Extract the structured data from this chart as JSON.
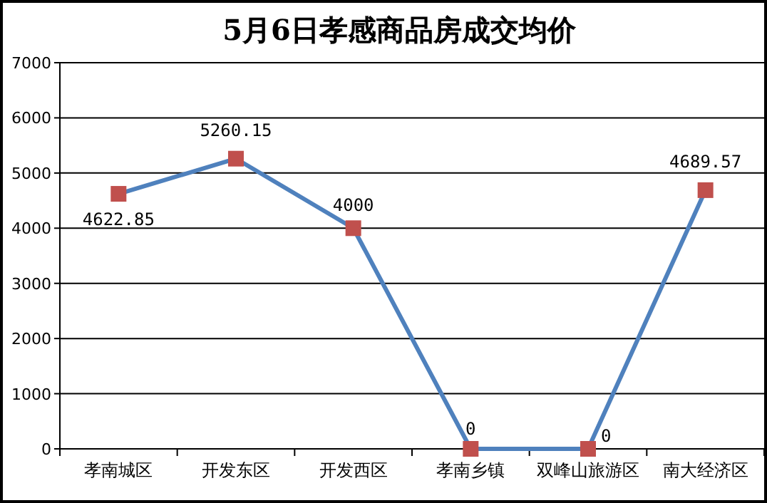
{
  "chart_data": {
    "type": "line",
    "title": "5月6日孝感商品房成交均价",
    "categories": [
      "孝南城区",
      "开发东区",
      "开发西区",
      "孝南乡镇",
      "双峰山旅游区",
      "南大经济区"
    ],
    "series": [
      {
        "color": "#4f81bd",
        "values": [
          4622.85,
          5260.15,
          4000,
          0,
          0,
          4689.57
        ]
      }
    ],
    "ylim": [
      0,
      7000
    ],
    "yticks": [
      0,
      1000,
      2000,
      3000,
      4000,
      5000,
      6000,
      7000
    ],
    "grid": "y",
    "marker": "square",
    "line_style": "solid",
    "data_labels": true
  }
}
